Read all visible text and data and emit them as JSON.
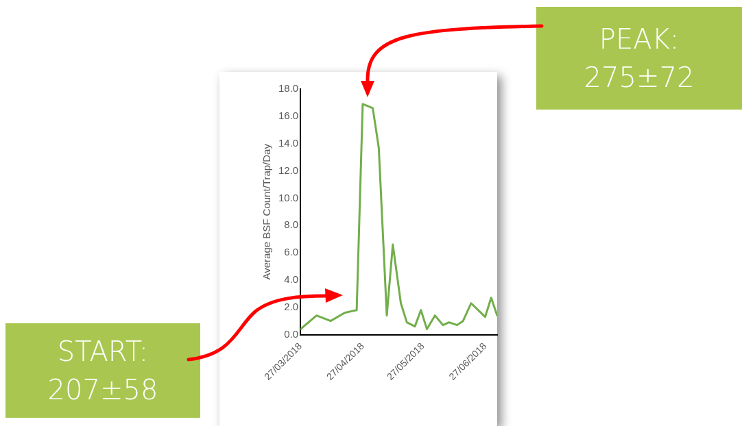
{
  "chart_data": {
    "type": "line",
    "ylabel": "Average BSF Count/Trap/Day",
    "x": [
      "2018-03-27",
      "2018-04-04",
      "2018-04-11",
      "2018-04-18",
      "2018-04-24",
      "2018-04-27",
      "2018-05-02",
      "2018-05-05",
      "2018-05-09",
      "2018-05-12",
      "2018-05-16",
      "2018-05-19",
      "2018-05-23",
      "2018-05-26",
      "2018-05-29",
      "2018-06-02",
      "2018-06-06",
      "2018-06-09",
      "2018-06-13",
      "2018-06-16",
      "2018-06-20",
      "2018-06-27",
      "2018-06-30",
      "2018-07-03"
    ],
    "series": [
      {
        "color": "#72ae4a",
        "values": [
          0.4,
          1.4,
          1.0,
          1.6,
          1.8,
          16.9,
          16.6,
          13.7,
          1.4,
          6.6,
          2.3,
          0.9,
          0.6,
          1.8,
          0.4,
          1.4,
          0.7,
          0.9,
          0.7,
          1.0,
          2.3,
          1.3,
          2.7,
          1.4
        ]
      }
    ],
    "xlim": [
      "2018-03-27",
      "2018-07-03"
    ],
    "xticks": [
      {
        "value": "2018-03-27",
        "label": "27/03/2018"
      },
      {
        "value": "2018-04-27",
        "label": "27/04/2018"
      },
      {
        "value": "2018-05-27",
        "label": "27/05/2018"
      },
      {
        "value": "2018-06-27",
        "label": "27/06/2018"
      }
    ],
    "ylim": [
      0,
      18
    ],
    "yticks": [
      {
        "value": 0,
        "label": "0.0"
      },
      {
        "value": 2,
        "label": "2.0"
      },
      {
        "value": 4,
        "label": "4.0"
      },
      {
        "value": 6,
        "label": "6.0"
      },
      {
        "value": 8,
        "label": "8.0"
      },
      {
        "value": 10,
        "label": "10.0"
      },
      {
        "value": 12,
        "label": "12.0"
      },
      {
        "value": 14,
        "label": "14.0"
      },
      {
        "value": 16,
        "label": "16.0"
      },
      {
        "value": 18,
        "label": "18.0"
      }
    ],
    "grid": false,
    "legend": false,
    "marker": "none",
    "line_style": "solid",
    "annotations": [
      "PEAK: 275±72",
      "START: 207±58"
    ]
  }
}
